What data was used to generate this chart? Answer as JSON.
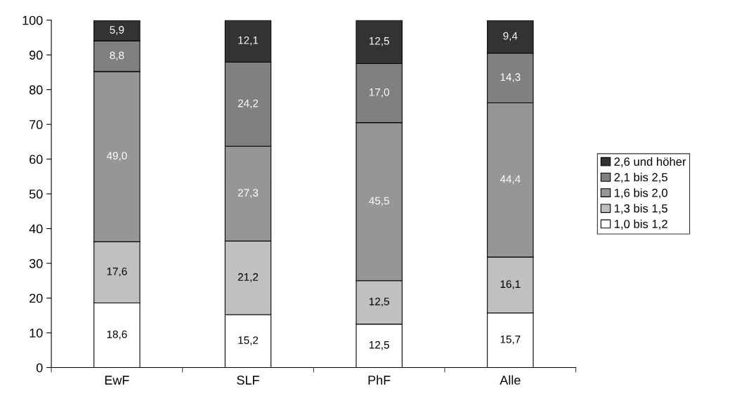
{
  "chart_data": {
    "type": "bar",
    "stacked": true,
    "categories": [
      "EwF",
      "SLF",
      "PhF",
      "Alle"
    ],
    "series": [
      {
        "name": "1,0 bis 1,2",
        "color": "#ffffff",
        "values": [
          18.6,
          15.2,
          12.5,
          15.7
        ],
        "value_labels": [
          "18,6",
          "15,2",
          "12,5",
          "15,7"
        ]
      },
      {
        "name": "1,3 bis 1,5",
        "color": "#c0c0c0",
        "values": [
          17.6,
          21.2,
          12.5,
          16.1
        ],
        "value_labels": [
          "17,6",
          "21,2",
          "12,5",
          "16,1"
        ]
      },
      {
        "name": "1,6 bis 2,0",
        "color": "#969696",
        "values": [
          49.0,
          27.3,
          45.5,
          44.4
        ],
        "value_labels": [
          "49,0",
          "27,3",
          "45,5",
          "44,4"
        ]
      },
      {
        "name": "2,1 bis 2,5",
        "color": "#808080",
        "values": [
          8.8,
          24.2,
          17.0,
          14.3
        ],
        "value_labels": [
          "8,8",
          "24,2",
          "17,0",
          "14,3"
        ]
      },
      {
        "name": "2,6 und höher",
        "color": "#333333",
        "values": [
          5.9,
          12.1,
          12.5,
          9.4
        ],
        "value_labels": [
          "5,9",
          "12,1",
          "12,5",
          "9,4"
        ]
      }
    ],
    "ylim": [
      0,
      100
    ],
    "yticks": [
      0,
      10,
      20,
      30,
      40,
      50,
      60,
      70,
      80,
      90,
      100
    ],
    "legend": "right",
    "grid": false
  }
}
